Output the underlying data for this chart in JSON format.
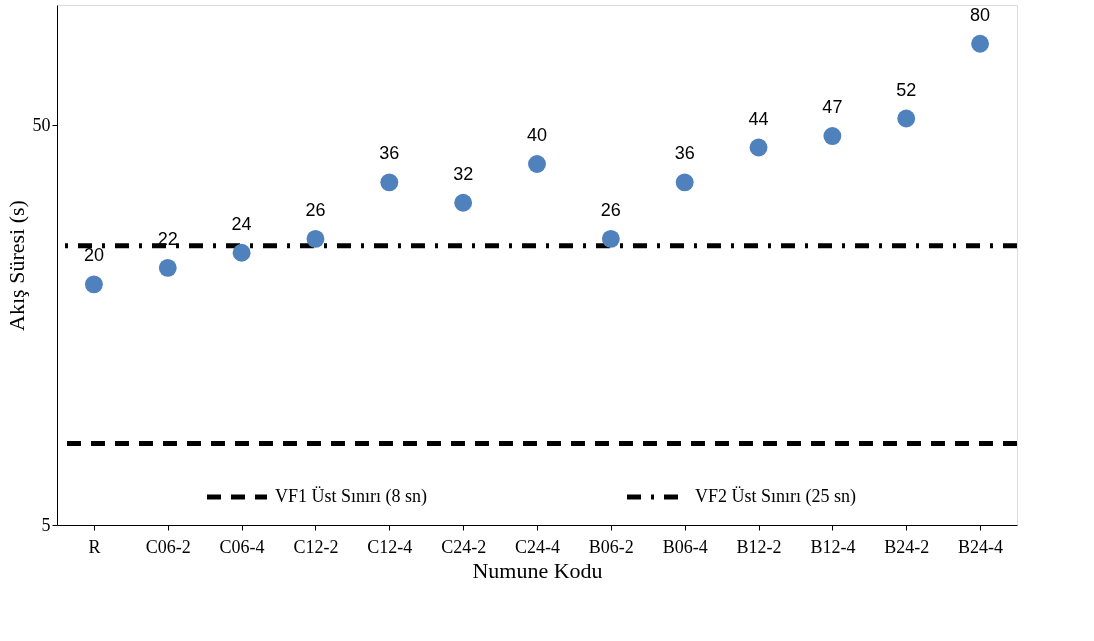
{
  "chart_data": {
    "type": "scatter",
    "xlabel": "Numune Kodu",
    "ylabel": "Akış Süresi (s)",
    "categories": [
      "R",
      "C06-2",
      "C06-4",
      "C12-2",
      "C12-4",
      "C24-2",
      "C24-4",
      "B06-2",
      "B06-4",
      "B12-2",
      "B12-4",
      "B24-2",
      "B24-4"
    ],
    "series": [
      {
        "color": "#4f81bd",
        "values": [
          20,
          22,
          24,
          26,
          36,
          32,
          40,
          26,
          36,
          44,
          47,
          52,
          80
        ]
      }
    ],
    "log": "y",
    "ylim": [
      5,
      100
    ],
    "yticks": [
      5,
      50
    ],
    "grid": false,
    "marker": "circle",
    "data_labels": true,
    "legend": "bottom",
    "ref_lines": [
      {
        "axis": "y",
        "value": 8,
        "label": "VF1 Üst Sınırı (8 sn)",
        "color": "#000000",
        "line_style": "dashed"
      },
      {
        "axis": "y",
        "value": 25,
        "label": "VF2 Üst Sınırı (25 sn)",
        "color": "#000000",
        "line_style": "dashdot"
      }
    ]
  }
}
